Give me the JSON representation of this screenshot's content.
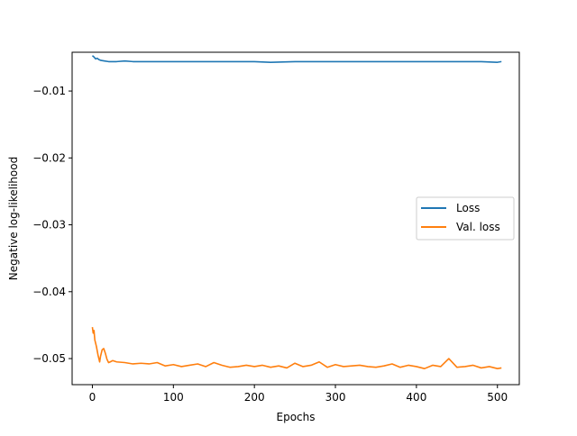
{
  "chart_data": {
    "type": "line",
    "title": "",
    "xlabel": "Epochs",
    "ylabel": "Negative log-likelihood",
    "xlim": [
      -25,
      527
    ],
    "ylim": [
      -0.0539,
      -0.0042
    ],
    "xticks": [
      0,
      100,
      200,
      300,
      400,
      500
    ],
    "yticks": [
      -0.01,
      -0.02,
      -0.03,
      -0.04,
      -0.05
    ],
    "xtick_labels": [
      "0",
      "100",
      "200",
      "300",
      "400",
      "500"
    ],
    "ytick_labels": [
      "−0.01",
      "−0.02",
      "−0.03",
      "−0.04",
      "−0.05"
    ],
    "grid": false,
    "legend": {
      "placement": "center-right",
      "entries": [
        "Loss",
        "Val. loss"
      ]
    },
    "series": [
      {
        "name": "Loss",
        "color": "#1f77b4",
        "x": [
          0,
          2,
          4,
          6,
          8,
          10,
          15,
          20,
          30,
          40,
          50,
          60,
          80,
          100,
          120,
          150,
          180,
          200,
          220,
          250,
          280,
          300,
          320,
          350,
          380,
          400,
          420,
          450,
          480,
          500,
          505
        ],
        "y": [
          -0.0047,
          -0.0049,
          -0.0052,
          -0.0051,
          -0.0053,
          -0.0054,
          -0.0055,
          -0.0056,
          -0.0056,
          -0.0055,
          -0.0056,
          -0.0056,
          -0.0056,
          -0.0056,
          -0.0056,
          -0.0056,
          -0.0056,
          -0.0056,
          -0.0057,
          -0.0056,
          -0.0056,
          -0.0056,
          -0.0056,
          -0.0056,
          -0.0056,
          -0.0056,
          -0.0056,
          -0.0056,
          -0.0056,
          -0.0057,
          -0.0056
        ]
      },
      {
        "name": "Val. loss",
        "color": "#ff7f0e",
        "x": [
          0,
          1,
          2,
          3,
          5,
          7,
          9,
          10,
          12,
          14,
          16,
          18,
          20,
          22,
          25,
          30,
          40,
          50,
          60,
          70,
          80,
          90,
          100,
          110,
          120,
          130,
          140,
          150,
          160,
          170,
          180,
          190,
          200,
          210,
          220,
          230,
          240,
          250,
          260,
          270,
          280,
          290,
          300,
          310,
          320,
          330,
          340,
          350,
          360,
          370,
          380,
          390,
          400,
          410,
          420,
          430,
          440,
          450,
          460,
          470,
          480,
          490,
          500,
          505
        ],
        "y": [
          -0.0453,
          -0.0462,
          -0.0458,
          -0.0472,
          -0.0482,
          -0.0495,
          -0.0505,
          -0.0497,
          -0.0487,
          -0.0485,
          -0.0492,
          -0.0501,
          -0.0506,
          -0.0505,
          -0.0503,
          -0.0505,
          -0.0506,
          -0.0508,
          -0.0507,
          -0.0508,
          -0.0506,
          -0.0511,
          -0.0509,
          -0.0512,
          -0.051,
          -0.0508,
          -0.0512,
          -0.0506,
          -0.051,
          -0.0513,
          -0.0512,
          -0.051,
          -0.0512,
          -0.051,
          -0.0513,
          -0.0511,
          -0.0514,
          -0.0507,
          -0.0512,
          -0.051,
          -0.0505,
          -0.0513,
          -0.0509,
          -0.0512,
          -0.0511,
          -0.051,
          -0.0512,
          -0.0513,
          -0.0511,
          -0.0508,
          -0.0513,
          -0.051,
          -0.0512,
          -0.0515,
          -0.051,
          -0.0512,
          -0.05,
          -0.0513,
          -0.0512,
          -0.051,
          -0.0514,
          -0.0512,
          -0.0515,
          -0.0514
        ]
      }
    ]
  }
}
